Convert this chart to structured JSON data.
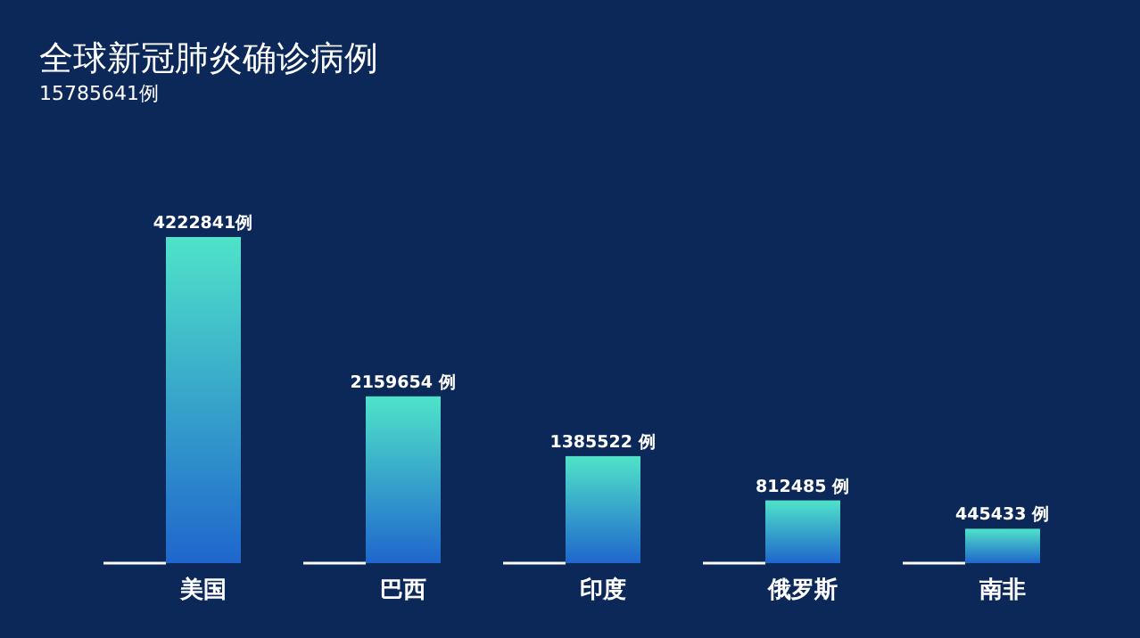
{
  "chart_data": {
    "type": "bar",
    "title": "全球新冠肺炎确诊病例",
    "subtitle": "15785641例",
    "categories": [
      "美国",
      "巴西",
      "印度",
      "俄罗斯",
      "南非"
    ],
    "series": [
      {
        "color": "#4fe3c9",
        "values": [
          4222841,
          2159654,
          1385522,
          812485,
          445433
        ],
        "value_labels": [
          "4222841例",
          "2159654 例",
          "1385522 例",
          "812485 例",
          "445433 例"
        ]
      }
    ],
    "data_labels": false
  }
}
